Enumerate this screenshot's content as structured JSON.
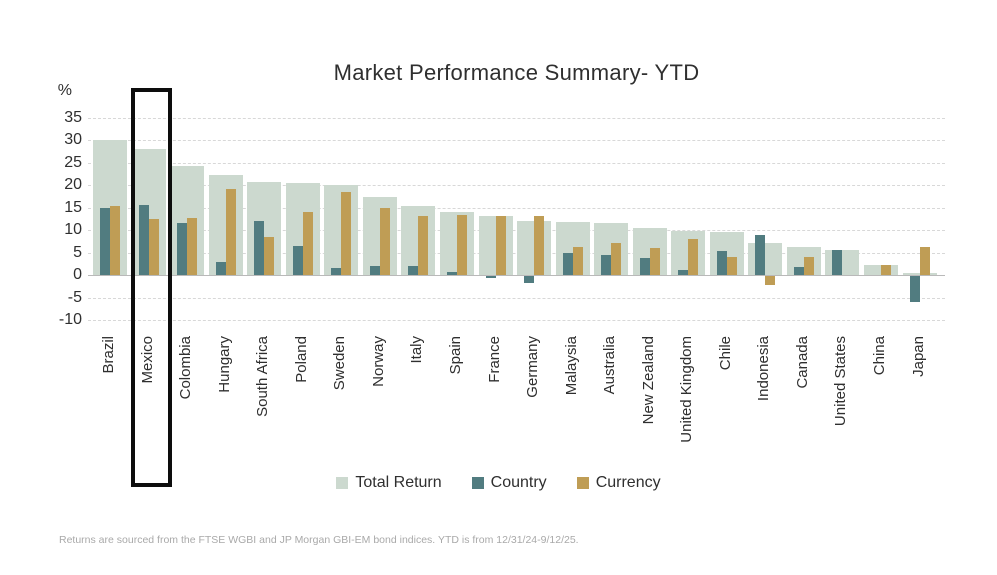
{
  "colors": {
    "total_return": "#ccd9cf",
    "country": "#517c80",
    "currency": "#bf9d55",
    "highlight_border": "#0d0d0d",
    "gridline": "#d8d8d8"
  },
  "y_axis": {
    "unit_label": "%",
    "ticks": [
      35,
      30,
      25,
      20,
      15,
      10,
      5,
      0,
      -5,
      -10
    ]
  },
  "legend": {
    "items": [
      {
        "label": "Total Return",
        "key": "total_return"
      },
      {
        "label": "Country",
        "key": "country"
      },
      {
        "label": "Currency",
        "key": "currency"
      }
    ]
  },
  "footnote": "Returns are sourced from the FTSE WGBI and JP Morgan GBI-EM bond indices. YTD is from 12/31/24-9/12/25.",
  "highlighted_category": "Mexico",
  "chart_data": {
    "type": "bar",
    "title": "Market Performance Summary- YTD",
    "xlabel": "",
    "ylabel": "%",
    "ylim": [
      -10,
      35
    ],
    "grid": "dashed horizontal",
    "legend_position": "bottom",
    "categories": [
      "Brazil",
      "Mexico",
      "Colombia",
      "Hungary",
      "South Africa",
      "Poland",
      "Sweden",
      "Norway",
      "Italy",
      "Spain",
      "France",
      "Germany",
      "Malaysia",
      "Australia",
      "New Zealand",
      "United Kingdom",
      "Chile",
      "Indonesia",
      "Canada",
      "United States",
      "China",
      "Japan"
    ],
    "series": [
      {
        "name": "Total Return",
        "values": [
          30.0,
          28.0,
          24.3,
          22.3,
          20.7,
          20.4,
          20.0,
          17.3,
          15.4,
          13.9,
          13.1,
          12.1,
          11.7,
          11.5,
          10.5,
          9.8,
          9.5,
          7.2,
          6.2,
          5.5,
          2.2,
          0.5
        ]
      },
      {
        "name": "Country",
        "values": [
          14.9,
          15.5,
          11.6,
          3.0,
          12.1,
          6.4,
          1.5,
          2.0,
          1.9,
          0.6,
          -0.5,
          -1.5,
          5.0,
          4.4,
          3.8,
          1.2,
          5.4,
          8.8,
          1.8,
          5.5,
          0,
          -5.8
        ]
      },
      {
        "name": "Currency",
        "values": [
          15.3,
          12.4,
          12.6,
          19.2,
          8.5,
          13.9,
          18.4,
          15.0,
          13.2,
          13.3,
          13.2,
          13.2,
          6.2,
          7.2,
          5.9,
          8.0,
          3.9,
          -2.0,
          3.9,
          0,
          2.2,
          6.3
        ]
      }
    ]
  }
}
